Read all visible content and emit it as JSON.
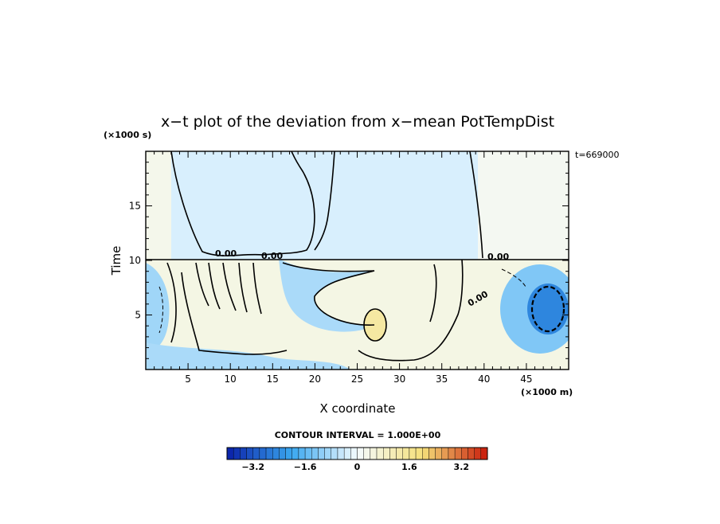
{
  "chart_data": {
    "type": "heatmap",
    "title": "x−t plot of the deviation from x−mean PotTempDist",
    "xlabel": "X coordinate",
    "ylabel": "Time",
    "x_unit": "(×1000 m)",
    "y_unit": "(×1000 s)",
    "time_stamp": "t=669000",
    "xlim": [
      0,
      50
    ],
    "ylim": [
      0,
      20
    ],
    "x_ticks": [
      5,
      10,
      15,
      20,
      25,
      30,
      35,
      40,
      45
    ],
    "y_ticks": [
      5,
      10,
      15
    ],
    "contour_label": "0.00",
    "contour_interval_label": "CONTOUR INTERVAL = 1.000E+00",
    "colorbar": {
      "min": -4,
      "max": 4,
      "step": 0.2,
      "tick_values": [
        -3.2,
        -1.6,
        0,
        1.6,
        3.2
      ],
      "tick_labels": [
        "−3.2",
        "−1.6",
        "0",
        "1.6",
        "3.2"
      ]
    },
    "fields": {
      "upper_left_value": 0.3,
      "upper_middle_value": -0.3,
      "upper_right_value": 0.2,
      "lower_band_value": 0.4,
      "blue_pool_value": -2.5,
      "yellow_spot_value": 1.4
    },
    "colors": {
      "negative_strong": "#0a1fa8",
      "negative_mid": "#3aa8f0",
      "neutral": "#f4fbff",
      "positive_mid": "#f5e07a",
      "positive_strong": "#c91a0a"
    }
  }
}
